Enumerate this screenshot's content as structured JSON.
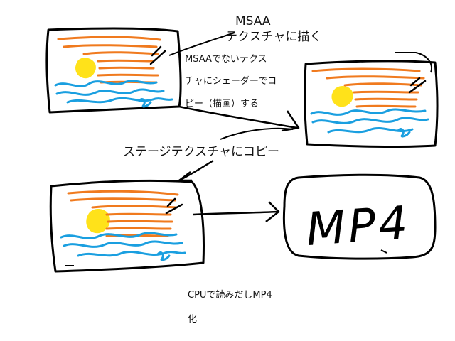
{
  "labels": {
    "msaa_line1": "MSAA",
    "msaa_line2": "テクスチャに描く",
    "non_msaa_line1": "MSAAでないテクス",
    "non_msaa_line2": "チャにシェーダーでコ",
    "non_msaa_line3": "ピー（描画）する",
    "staging": "ステージテクスチャにコピー",
    "cpu_line1": "CPUで読みだしMP4",
    "cpu_line2": "化"
  },
  "mp4_box": {
    "text": "MP4"
  },
  "colors": {
    "ink": "#000000",
    "sun": "#ffe21a",
    "stripes": "#f07a1e",
    "waves": "#1a9fe0"
  }
}
